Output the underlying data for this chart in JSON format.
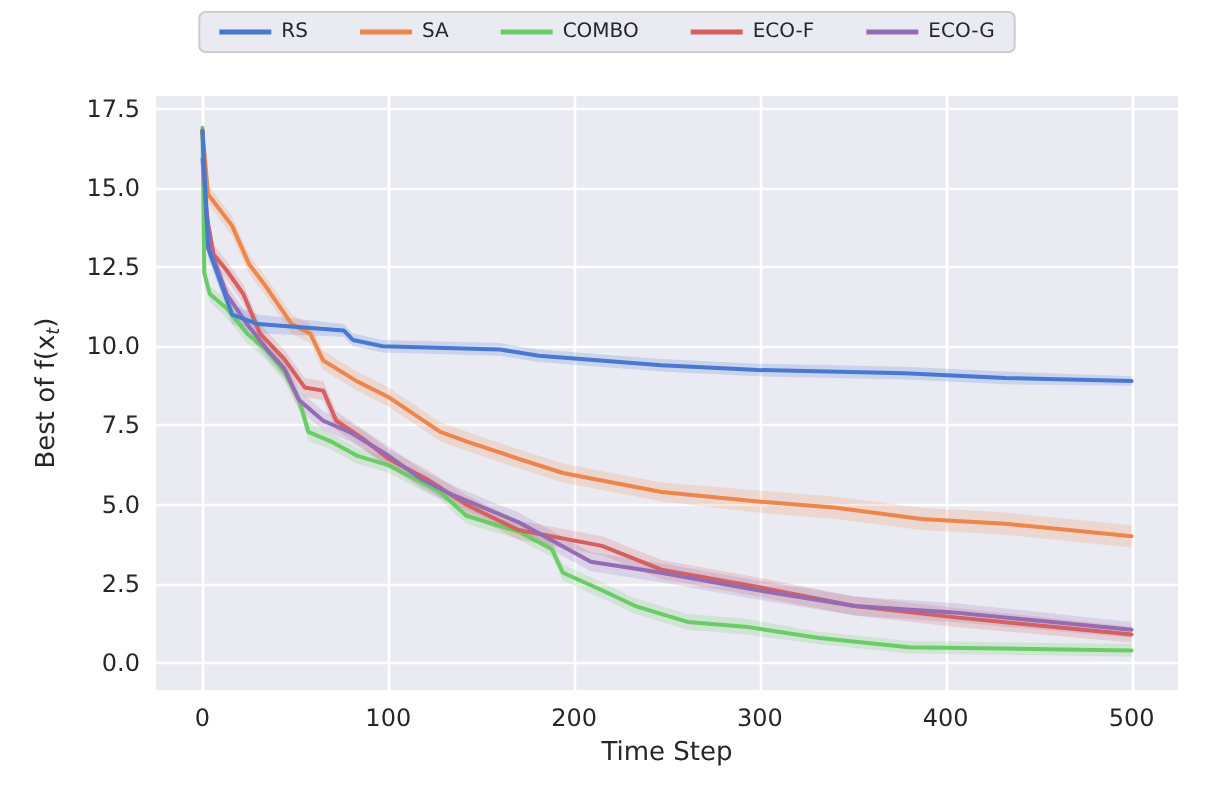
{
  "chart_data": {
    "type": "line",
    "xlabel": "Time Step",
    "ylabel": "Best of f(x$_{t}$)",
    "xlim": [
      -25,
      525
    ],
    "xticks": [
      0,
      100,
      200,
      300,
      400,
      500
    ],
    "ylim": [
      -0.85,
      17.9
    ],
    "yticks": [
      {
        "value": 0,
        "label": "0.0"
      },
      {
        "value": 2.5,
        "label": "2.5"
      },
      {
        "value": 5,
        "label": "5.0"
      },
      {
        "value": 7.5,
        "label": "7.5"
      },
      {
        "value": 10,
        "label": "10.0"
      },
      {
        "value": 12.5,
        "label": "12.5"
      },
      {
        "value": 15,
        "label": "15.0"
      },
      {
        "value": 17.5,
        "label": "17.5"
      }
    ],
    "grid": true,
    "legend": "top",
    "marker": "none",
    "line_style": "solid",
    "series": [
      {
        "name": "RS",
        "color": "#4878d0",
        "x": [
          0,
          3,
          16,
          30,
          76,
          81,
          97,
          160,
          181,
          247,
          299,
          378,
          432,
          500
        ],
        "values": [
          16.8,
          13.1,
          11.0,
          10.7,
          10.5,
          10.2,
          10.0,
          9.9,
          9.7,
          9.4,
          9.25,
          9.15,
          9.0,
          8.9
        ],
        "lower": [
          16.6,
          12.8,
          10.7,
          10.4,
          10.3,
          10.0,
          9.8,
          9.7,
          9.5,
          9.2,
          9.05,
          8.95,
          8.8,
          8.75
        ],
        "upper": [
          17.0,
          13.4,
          11.3,
          11.0,
          10.7,
          10.4,
          10.2,
          10.1,
          9.9,
          9.6,
          9.45,
          9.35,
          9.2,
          9.05
        ]
      },
      {
        "name": "SA",
        "color": "#ee854a",
        "x": [
          0,
          3,
          16,
          25,
          34,
          48,
          58,
          65,
          83,
          100,
          128,
          142,
          170,
          194,
          247,
          299,
          341,
          387,
          432,
          500
        ],
        "values": [
          16.8,
          14.8,
          13.8,
          12.6,
          11.9,
          10.7,
          10.4,
          9.55,
          8.9,
          8.4,
          7.3,
          7.0,
          6.45,
          6.0,
          5.4,
          5.1,
          4.9,
          4.55,
          4.4,
          4.0
        ],
        "lower": [
          16.6,
          14.5,
          13.5,
          12.3,
          11.6,
          10.4,
          10.1,
          9.25,
          8.6,
          8.1,
          7.0,
          6.7,
          6.15,
          5.7,
          5.1,
          4.75,
          4.55,
          4.2,
          4.05,
          3.65
        ],
        "upper": [
          17.0,
          15.1,
          14.1,
          12.9,
          12.2,
          11.0,
          10.7,
          9.85,
          9.2,
          8.7,
          7.6,
          7.3,
          6.75,
          6.3,
          5.7,
          5.45,
          5.25,
          4.9,
          4.75,
          4.35
        ]
      },
      {
        "name": "COMBO",
        "color": "#6acc64",
        "x": [
          0,
          1,
          4,
          13,
          24,
          34,
          44,
          52,
          57,
          69,
          83,
          100,
          128,
          142,
          170,
          188,
          194,
          215,
          233,
          261,
          292,
          331,
          380,
          500
        ],
        "values": [
          16.9,
          12.3,
          11.65,
          11.2,
          10.4,
          9.9,
          9.2,
          8.3,
          7.3,
          7.0,
          6.55,
          6.25,
          5.4,
          4.65,
          4.15,
          3.6,
          2.85,
          2.3,
          1.8,
          1.3,
          1.15,
          0.8,
          0.5,
          0.4
        ],
        "lower": [
          16.7,
          12.0,
          11.4,
          10.9,
          10.1,
          9.6,
          8.9,
          8.0,
          7.0,
          6.75,
          6.3,
          6.0,
          5.15,
          4.4,
          3.9,
          3.35,
          2.6,
          2.05,
          1.55,
          1.05,
          0.9,
          0.6,
          0.3,
          0.2
        ],
        "upper": [
          17.1,
          12.6,
          11.9,
          11.5,
          10.7,
          10.2,
          9.5,
          8.6,
          7.6,
          7.25,
          6.8,
          6.5,
          5.65,
          4.9,
          4.4,
          3.85,
          3.1,
          2.55,
          2.05,
          1.55,
          1.4,
          1.0,
          0.7,
          0.6
        ]
      },
      {
        "name": "ECO-F",
        "color": "#d65f5f",
        "x": [
          0,
          2,
          6,
          13,
          22,
          31,
          44,
          55,
          65,
          72,
          86,
          100,
          121,
          142,
          170,
          215,
          247,
          299,
          351,
          404,
          500
        ],
        "values": [
          16.8,
          14.2,
          12.9,
          12.4,
          11.65,
          10.4,
          9.6,
          8.7,
          8.6,
          7.65,
          7.1,
          6.45,
          5.8,
          5.0,
          4.2,
          3.7,
          2.95,
          2.4,
          1.8,
          1.45,
          0.9
        ],
        "lower": [
          16.6,
          13.9,
          12.6,
          12.1,
          11.35,
          10.1,
          9.3,
          8.4,
          8.3,
          7.35,
          6.8,
          6.15,
          5.5,
          4.7,
          3.9,
          3.4,
          2.65,
          2.1,
          1.5,
          1.15,
          0.65
        ],
        "upper": [
          17.0,
          14.5,
          13.2,
          12.7,
          11.95,
          10.7,
          9.9,
          9.0,
          8.9,
          7.95,
          7.4,
          6.75,
          6.1,
          5.3,
          4.5,
          4.0,
          3.25,
          2.7,
          2.1,
          1.75,
          1.15
        ]
      },
      {
        "name": "ECO-G",
        "color": "#956cb4",
        "x": [
          0,
          4,
          13,
          24,
          34,
          44,
          52,
          65,
          79,
          100,
          118,
          135,
          170,
          209,
          247,
          299,
          351,
          404,
          500
        ],
        "values": [
          15.9,
          13.1,
          11.65,
          10.7,
          9.95,
          9.3,
          8.3,
          7.65,
          7.3,
          6.55,
          5.8,
          5.3,
          4.45,
          3.2,
          2.85,
          2.3,
          1.8,
          1.6,
          1.05
        ],
        "lower": [
          15.6,
          12.8,
          11.35,
          10.4,
          9.65,
          9.0,
          8.0,
          7.35,
          7.0,
          6.25,
          5.5,
          5.0,
          4.15,
          2.9,
          2.55,
          2.0,
          1.5,
          1.3,
          0.8
        ],
        "upper": [
          16.2,
          13.4,
          11.95,
          11.0,
          10.25,
          9.6,
          8.6,
          7.95,
          7.6,
          6.85,
          6.1,
          5.6,
          4.75,
          3.5,
          3.15,
          2.6,
          2.1,
          1.9,
          1.3
        ]
      }
    ]
  }
}
